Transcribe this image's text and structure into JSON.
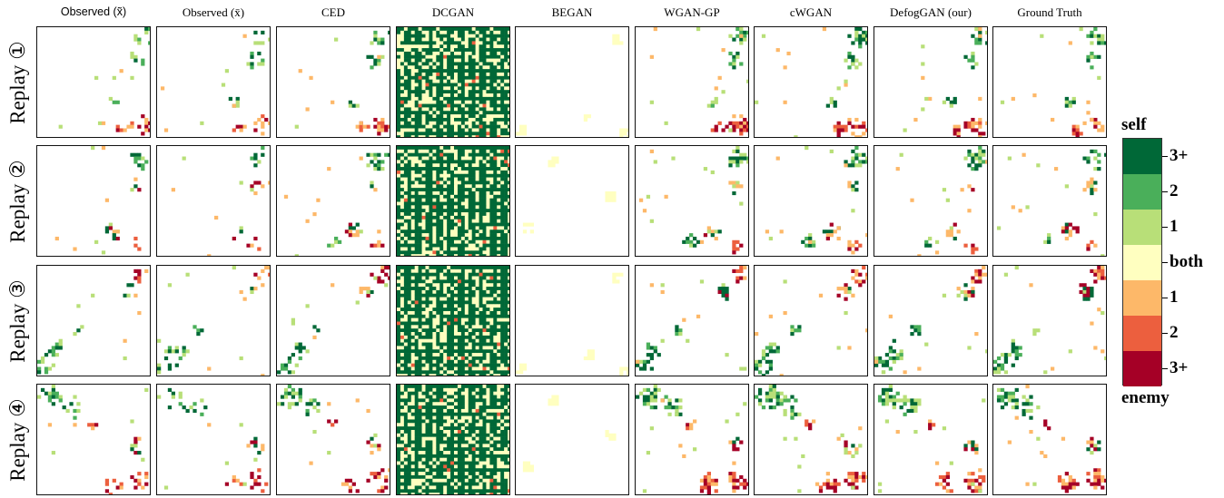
{
  "columns": [
    {
      "label": "Observed (x̃)",
      "sans": true
    },
    {
      "label": "Observed (x̄)",
      "sans": false
    },
    {
      "label": "CED",
      "sans": false
    },
    {
      "label": "DCGAN",
      "sans": false
    },
    {
      "label": "BEGAN",
      "sans": false
    },
    {
      "label": "WGAN-GP",
      "sans": false
    },
    {
      "label": "cWGAN",
      "sans": false
    },
    {
      "label": "DefogGAN (our)",
      "sans": false
    },
    {
      "label": "Ground Truth",
      "sans": false
    }
  ],
  "rows": [
    {
      "label": "Replay ①"
    },
    {
      "label": "Replay ②"
    },
    {
      "label": "Replay ③"
    },
    {
      "label": "Replay ④"
    }
  ],
  "legend": {
    "top_label": "self",
    "bottom_label": "enemy",
    "entries": [
      {
        "label": "3+",
        "color": "#006837"
      },
      {
        "label": "2",
        "color": "#4aaf5a"
      },
      {
        "label": "1",
        "color": "#b8df78"
      },
      {
        "label": "both",
        "color": "#ffffc0"
      },
      {
        "label": "1",
        "color": "#fdb869"
      },
      {
        "label": "2",
        "color": "#ec5f3e"
      },
      {
        "label": "3+",
        "color": "#a50026"
      }
    ]
  }
}
